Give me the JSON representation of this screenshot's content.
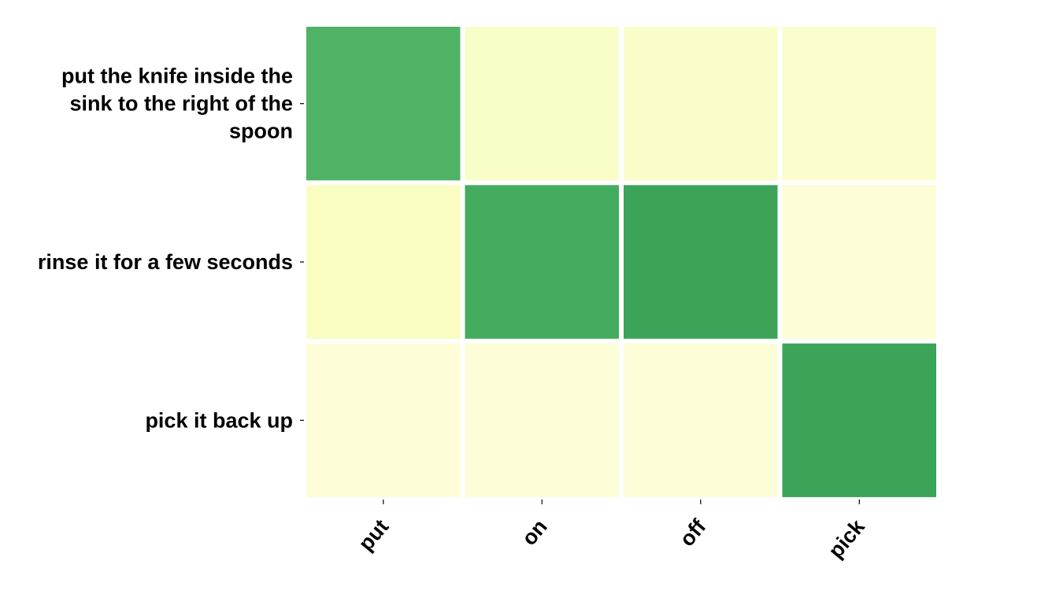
{
  "chart_data": {
    "type": "heatmap",
    "rows": [
      "put the knife inside the sink to the right of the spoon",
      "rinse it for a few seconds",
      "pick it back up"
    ],
    "row_label_lines": [
      [
        "put the knife inside the",
        "sink to the right of the",
        "spoon"
      ],
      [
        "rinse it for a few seconds"
      ],
      [
        "pick it back up"
      ]
    ],
    "columns": [
      "put",
      "on",
      "off",
      "pick"
    ],
    "values": [
      [
        0.82,
        0.12,
        0.11,
        0.09
      ],
      [
        0.14,
        0.86,
        0.9,
        0.05
      ],
      [
        0.05,
        0.05,
        0.05,
        0.9
      ]
    ],
    "colormap": "YlGn",
    "color_range": [
      0,
      1
    ],
    "colorbar": false,
    "grid": false,
    "gap_color": "#ffffff",
    "title": "",
    "xlabel": "",
    "ylabel": ""
  }
}
